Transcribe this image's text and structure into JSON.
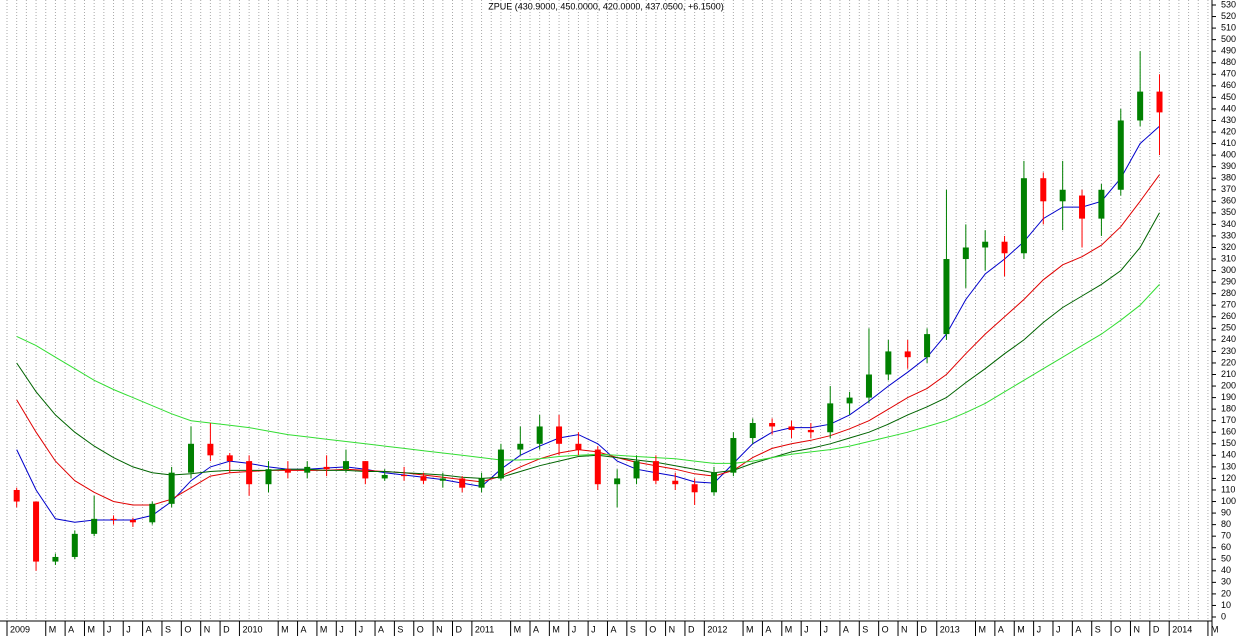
{
  "chart_data": {
    "type": "candlestick",
    "title": "ZPUE (430.9000, 450.0000, 420.0000, 437.0500, +6.1500)",
    "categories": [
      "2009",
      null,
      "M",
      "A",
      "M",
      "J",
      "J",
      "A",
      "S",
      "O",
      "N",
      "D",
      "2010",
      null,
      "M",
      "A",
      "M",
      "J",
      "J",
      "A",
      "S",
      "O",
      "N",
      "D",
      "2011",
      null,
      "M",
      "A",
      "M",
      "J",
      "J",
      "A",
      "S",
      "O",
      "N",
      "D",
      "2012",
      null,
      "M",
      "A",
      "M",
      "J",
      "J",
      "A",
      "S",
      "O",
      "N",
      "D",
      "2013",
      null,
      "M",
      "A",
      "M",
      "J",
      "J",
      "A",
      "S",
      "O",
      "N",
      "D",
      "2014",
      null,
      "M"
    ],
    "open": [
      110,
      100,
      48,
      52,
      72,
      85,
      84,
      82,
      98,
      125,
      150,
      140,
      135,
      115,
      128,
      125,
      130,
      128,
      135,
      120,
      123,
      122,
      118,
      120,
      112,
      120,
      145,
      150,
      165,
      150,
      145,
      115,
      120,
      135,
      118,
      115,
      108,
      125,
      155,
      168,
      165,
      162,
      160,
      185,
      190,
      210,
      230,
      225,
      245,
      310,
      320,
      325,
      315,
      380,
      360,
      365,
      345,
      370,
      430,
      455,
      null,
      null,
      null
    ],
    "high": [
      112,
      100,
      55,
      75,
      105,
      88,
      86,
      100,
      130,
      165,
      168,
      142,
      140,
      135,
      135,
      135,
      140,
      145,
      135,
      128,
      130,
      125,
      125,
      122,
      125,
      150,
      165,
      175,
      175,
      160,
      148,
      128,
      140,
      140,
      125,
      120,
      130,
      160,
      172,
      172,
      170,
      168,
      200,
      195,
      250,
      240,
      240,
      250,
      370,
      340,
      335,
      330,
      395,
      385,
      395,
      370,
      375,
      440,
      490,
      470,
      null,
      null,
      null
    ],
    "low": [
      95,
      40,
      45,
      50,
      70,
      80,
      78,
      80,
      95,
      120,
      135,
      125,
      105,
      108,
      120,
      120,
      122,
      125,
      115,
      118,
      118,
      115,
      112,
      108,
      108,
      118,
      140,
      145,
      140,
      140,
      110,
      95,
      115,
      115,
      110,
      97,
      105,
      122,
      150,
      158,
      155,
      155,
      155,
      175,
      185,
      205,
      215,
      220,
      240,
      285,
      300,
      295,
      310,
      340,
      335,
      320,
      330,
      365,
      425,
      400,
      null,
      null,
      null
    ],
    "close": [
      100,
      48,
      52,
      72,
      85,
      84,
      82,
      98,
      125,
      150,
      140,
      135,
      115,
      128,
      125,
      130,
      128,
      135,
      120,
      123,
      122,
      118,
      120,
      112,
      120,
      145,
      150,
      165,
      150,
      145,
      115,
      120,
      135,
      118,
      115,
      108,
      125,
      155,
      168,
      165,
      162,
      160,
      185,
      190,
      210,
      230,
      225,
      245,
      310,
      320,
      325,
      315,
      380,
      360,
      370,
      345,
      370,
      430,
      455,
      437,
      null,
      null,
      null
    ],
    "up_color": "#008000",
    "down_color": "#ff0000",
    "series": [
      {
        "color": "#0000cc",
        "values": [
          145,
          110,
          85,
          82,
          84,
          84,
          84,
          88,
          100,
          118,
          130,
          135,
          133,
          130,
          128,
          128,
          129,
          130,
          128,
          125,
          123,
          121,
          119,
          116,
          113,
          128,
          140,
          148,
          155,
          158,
          150,
          135,
          128,
          125,
          122,
          117,
          116,
          133,
          150,
          160,
          164,
          164,
          167,
          175,
          187,
          200,
          212,
          225,
          245,
          275,
          297,
          310,
          325,
          345,
          355,
          355,
          360,
          380,
          410,
          425,
          null,
          null,
          null
        ]
      },
      {
        "color": "#e00000",
        "values": [
          188,
          160,
          135,
          118,
          108,
          100,
          97,
          97,
          102,
          112,
          122,
          125,
          126,
          127,
          127,
          127,
          127,
          128,
          127,
          126,
          125,
          123,
          121,
          119,
          117,
          122,
          130,
          137,
          142,
          145,
          143,
          138,
          134,
          131,
          128,
          124,
          122,
          127,
          138,
          146,
          150,
          153,
          157,
          163,
          170,
          180,
          190,
          198,
          210,
          228,
          245,
          260,
          275,
          292,
          305,
          312,
          322,
          338,
          360,
          383,
          null,
          null,
          null
        ]
      },
      {
        "color": "#006400",
        "values": [
          220,
          195,
          175,
          160,
          148,
          138,
          130,
          125,
          123,
          124,
          126,
          127,
          127,
          127,
          128,
          128,
          127,
          127,
          126,
          126,
          125,
          124,
          123,
          121,
          120,
          121,
          126,
          131,
          135,
          139,
          140,
          138,
          136,
          134,
          131,
          128,
          125,
          127,
          133,
          138,
          143,
          146,
          150,
          155,
          160,
          167,
          175,
          182,
          190,
          203,
          215,
          228,
          240,
          255,
          268,
          278,
          288,
          300,
          320,
          350,
          null,
          null,
          null
        ]
      },
      {
        "color": "#33dd33",
        "values": [
          243,
          235,
          225,
          215,
          205,
          197,
          190,
          183,
          176,
          170,
          168,
          166,
          164,
          161,
          158,
          156,
          154,
          152,
          150,
          148,
          146,
          144,
          142,
          140,
          138,
          136,
          136,
          137,
          139,
          140,
          141,
          140,
          139,
          138,
          137,
          135,
          133,
          133,
          135,
          138,
          141,
          143,
          145,
          148,
          152,
          156,
          160,
          165,
          170,
          177,
          185,
          195,
          205,
          215,
          225,
          235,
          245,
          257,
          270,
          288,
          null,
          null,
          null
        ]
      }
    ],
    "ylim": [
      0,
      534
    ],
    "yticks": [
      0,
      10,
      20,
      30,
      40,
      50,
      60,
      70,
      80,
      90,
      100,
      110,
      120,
      130,
      140,
      150,
      160,
      170,
      180,
      190,
      200,
      210,
      220,
      230,
      240,
      250,
      260,
      270,
      280,
      290,
      300,
      310,
      320,
      330,
      340,
      350,
      360,
      370,
      380,
      390,
      400,
      410,
      420,
      430,
      440,
      450,
      460,
      470,
      480,
      490,
      500,
      510,
      520,
      530
    ],
    "grid": true
  }
}
